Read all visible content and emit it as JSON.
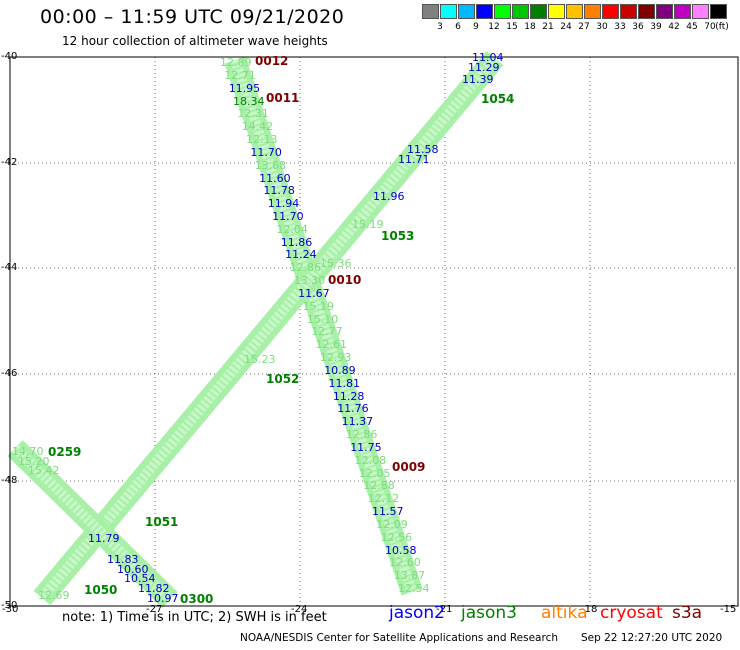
{
  "header": {
    "title": "00:00 – 11:59 UTC 09/21/2020",
    "subtitle": "12 hour collection of altimeter wave heights"
  },
  "colorbar": {
    "unit": "(ft)",
    "labels": [
      "3",
      "6",
      "9",
      "12",
      "15",
      "18",
      "21",
      "24",
      "27",
      "30",
      "33",
      "36",
      "39",
      "42",
      "45",
      "70"
    ],
    "colors": [
      "#808080",
      "#00ffff",
      "#00b8ff",
      "#0000ff",
      "#00ff00",
      "#00c800",
      "#008000",
      "#ffff00",
      "#ffc000",
      "#ff8000",
      "#ff0000",
      "#c80000",
      "#800000",
      "#800080",
      "#c000c0",
      "#ff80ff",
      "#000000"
    ]
  },
  "axes": {
    "lat_labels": [
      "-40",
      "-42",
      "-44",
      "-46",
      "-48",
      "-50"
    ],
    "lon_labels": [
      "-30",
      "-27",
      "-24",
      "-21",
      "-18",
      "-15"
    ]
  },
  "tracks": {
    "track_a": [
      {
        "t": "12.89",
        "c": "#7ddc7d"
      },
      {
        "t": "12.71",
        "c": "#7ddc7d"
      },
      {
        "t": "11.95",
        "c": "#0000c8"
      },
      {
        "t": "18.34",
        "c": "#008000"
      },
      {
        "t": "12.31",
        "c": "#7ddc7d"
      },
      {
        "t": "14.42",
        "c": "#7ddc7d"
      },
      {
        "t": "12.13",
        "c": "#7ddc7d"
      },
      {
        "t": "11.70",
        "c": "#0000c8"
      },
      {
        "t": "13.68",
        "c": "#7ddc7d"
      },
      {
        "t": "11.60",
        "c": "#0000c8"
      },
      {
        "t": "11.78",
        "c": "#0000c8"
      },
      {
        "t": "11.94",
        "c": "#0000c8"
      },
      {
        "t": "11.70",
        "c": "#0000c8"
      },
      {
        "t": "12.04",
        "c": "#7ddc7d"
      },
      {
        "t": "11.86",
        "c": "#0000c8"
      },
      {
        "t": "11.24",
        "c": "#0000c8"
      },
      {
        "t": "12.86",
        "c": "#7ddc7d"
      },
      {
        "t": "13.30",
        "c": "#7ddc7d"
      },
      {
        "t": "11.67",
        "c": "#0000c8"
      },
      {
        "t": "15.19",
        "c": "#7ddc7d"
      },
      {
        "t": "15.10",
        "c": "#7ddc7d"
      },
      {
        "t": "12.77",
        "c": "#7ddc7d"
      },
      {
        "t": "12.61",
        "c": "#7ddc7d"
      },
      {
        "t": "12.93",
        "c": "#7ddc7d"
      },
      {
        "t": "10.89",
        "c": "#0000c8"
      },
      {
        "t": "11.81",
        "c": "#0000c8"
      },
      {
        "t": "11.28",
        "c": "#0000c8"
      },
      {
        "t": "11.76",
        "c": "#0000c8"
      },
      {
        "t": "11.37",
        "c": "#0000c8"
      },
      {
        "t": "12.86",
        "c": "#7ddc7d"
      },
      {
        "t": "11.75",
        "c": "#0000c8"
      },
      {
        "t": "12.08",
        "c": "#7ddc7d"
      },
      {
        "t": "12.05",
        "c": "#7ddc7d"
      },
      {
        "t": "12.88",
        "c": "#7ddc7d"
      },
      {
        "t": "12.12",
        "c": "#7ddc7d"
      },
      {
        "t": "11.57",
        "c": "#0000c8"
      },
      {
        "t": "12.09",
        "c": "#7ddc7d"
      },
      {
        "t": "12.56",
        "c": "#7ddc7d"
      },
      {
        "t": "10.58",
        "c": "#0000c8"
      },
      {
        "t": "12.60",
        "c": "#7ddc7d"
      },
      {
        "t": "13.87",
        "c": "#7ddc7d"
      },
      {
        "t": "12.54",
        "c": "#7ddc7d"
      }
    ],
    "track_b": [
      {
        "t": "11.04",
        "c": "#0000c8"
      },
      {
        "t": "11.29",
        "c": "#0000c8"
      },
      {
        "t": "11.39",
        "c": "#0000c8"
      },
      {
        "t": "11.58",
        "c": "#0000c8"
      },
      {
        "t": "11.71",
        "c": "#0000c8"
      },
      {
        "t": "11.96",
        "c": "#0000c8"
      },
      {
        "t": "15.19",
        "c": "#7ddc7d"
      },
      {
        "t": "15.36",
        "c": "#7ddc7d"
      },
      {
        "t": "15.23",
        "c": "#7ddc7d"
      }
    ],
    "track_c": [
      {
        "t": "14.70",
        "c": "#7ddc7d"
      },
      {
        "t": "15.20",
        "c": "#7ddc7d"
      },
      {
        "t": "15.42",
        "c": "#7ddc7d"
      },
      {
        "t": "11.79",
        "c": "#0000c8"
      },
      {
        "t": "11.83",
        "c": "#0000c8"
      },
      {
        "t": "10.60",
        "c": "#0000c8"
      },
      {
        "t": "10.54",
        "c": "#0000c8"
      },
      {
        "t": "11.82",
        "c": "#0000c8"
      },
      {
        "t": "10.97",
        "c": "#0000c8"
      },
      {
        "t": "12.69",
        "c": "#7ddc7d"
      }
    ]
  },
  "orbit_labels": [
    {
      "t": "0012",
      "c": "#800000"
    },
    {
      "t": "0011",
      "c": "#800000"
    },
    {
      "t": "0010",
      "c": "#800000"
    },
    {
      "t": "0009",
      "c": "#800000"
    },
    {
      "t": "1054",
      "c": "#008000"
    },
    {
      "t": "1053",
      "c": "#008000"
    },
    {
      "t": "1052",
      "c": "#008000"
    },
    {
      "t": "0259",
      "c": "#008000"
    },
    {
      "t": "1051",
      "c": "#008000"
    },
    {
      "t": "1050",
      "c": "#008000"
    },
    {
      "t": "0300",
      "c": "#008000"
    }
  ],
  "footer": {
    "note": "note:  1) Time is in UTC;  2) SWH is in feet",
    "satellites": [
      {
        "name": "jason2",
        "color": "#0000ff"
      },
      {
        "name": "jason3",
        "color": "#008000"
      },
      {
        "name": "altika",
        "color": "#ff8000"
      },
      {
        "name": "cryosat",
        "color": "#ff0000"
      },
      {
        "name": "s3a",
        "color": "#800000"
      }
    ],
    "credit": "NOAA/NESDIS Center for Satellite Applications and Research",
    "timestamp": "Sep 22 12:27:20 UTC 2020"
  }
}
